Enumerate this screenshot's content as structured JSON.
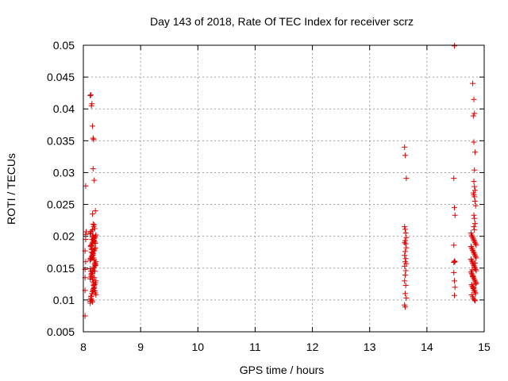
{
  "chart_data": {
    "type": "scatter",
    "title": "Day 143 of 2018, Rate Of TEC Index for receiver scrz",
    "xlabel": "GPS time / hours",
    "ylabel": "ROTI / TECUs",
    "xlim": [
      8,
      15
    ],
    "ylim": [
      0.005,
      0.05
    ],
    "xticks": [
      "8",
      "9",
      "10",
      "11",
      "12",
      "13",
      "14",
      "15"
    ],
    "yticks": [
      "0.005",
      "0.01",
      "0.015",
      "0.02",
      "0.025",
      "0.03",
      "0.035",
      "0.04",
      "0.045",
      "0.05"
    ],
    "grid": true,
    "marker": "plus",
    "color": "#e00000",
    "series": [
      {
        "x": [
          8.03,
          8.03,
          8.03,
          8.04,
          8.03,
          8.04,
          8.04,
          8.05,
          8.04,
          8.03,
          8.12,
          8.13,
          8.14,
          8.15,
          8.16,
          8.17,
          8.18,
          8.17,
          8.19,
          8.21,
          8.16,
          8.17,
          8.12,
          8.12,
          8.13,
          8.14,
          8.15,
          8.16,
          8.17,
          8.18,
          8.19,
          8.2,
          8.21,
          8.22,
          8.12,
          8.13,
          8.14,
          8.15,
          8.16,
          8.17,
          8.18,
          8.19,
          8.2,
          8.21,
          8.22,
          8.12,
          8.13,
          8.14,
          8.15,
          8.16,
          8.17,
          8.18,
          8.19,
          8.2,
          8.21,
          8.13,
          8.14,
          8.15,
          8.16,
          8.17,
          8.18,
          8.19,
          8.2,
          8.21,
          8.22,
          8.12,
          8.13,
          8.14,
          8.15,
          8.16,
          8.17,
          8.18,
          8.19,
          8.2,
          8.21,
          8.13,
          8.14,
          8.15,
          8.16,
          8.17,
          8.18,
          8.19,
          8.2,
          8.21,
          8.12,
          8.13,
          8.14,
          8.15,
          8.16,
          8.17,
          8.18,
          8.19,
          8.2,
          8.21,
          8.22,
          8.13,
          8.14,
          8.15,
          8.16,
          8.17,
          8.18,
          8.19,
          8.2,
          8.21,
          8.12,
          8.14,
          8.15,
          8.16,
          8.18,
          8.19,
          8.2,
          13.61,
          13.62,
          13.64,
          13.61,
          13.62,
          13.63,
          13.64,
          13.62,
          13.61,
          13.63,
          13.64,
          13.62,
          13.61,
          13.63,
          13.62,
          13.64,
          13.61,
          13.63,
          13.62,
          13.61,
          13.63,
          13.62,
          13.64,
          13.61,
          13.62,
          14.48,
          14.47,
          14.48,
          14.49,
          14.47,
          14.48,
          14.49,
          14.47,
          14.48,
          14.49,
          14.48,
          14.47,
          14.8,
          14.82,
          14.83,
          14.81,
          14.82,
          14.84,
          14.83,
          14.82,
          14.83,
          14.84,
          14.81,
          14.82,
          14.83,
          14.84,
          14.85,
          14.82,
          14.83,
          14.84,
          14.82,
          14.83,
          14.77,
          14.78,
          14.79,
          14.8,
          14.81,
          14.82,
          14.83,
          14.84,
          14.85,
          14.86,
          14.77,
          14.78,
          14.79,
          14.8,
          14.81,
          14.82,
          14.83,
          14.84,
          14.85,
          14.86,
          14.77,
          14.78,
          14.79,
          14.8,
          14.81,
          14.82,
          14.83,
          14.84,
          14.85,
          14.86,
          14.77,
          14.78,
          14.79,
          14.8,
          14.81,
          14.82,
          14.83,
          14.84,
          14.85,
          14.86,
          14.78,
          14.79,
          14.8,
          14.81,
          14.82,
          14.83,
          14.84,
          14.85,
          14.78,
          14.8,
          14.81,
          14.83,
          14.84,
          14.82,
          14.85,
          14.8,
          14.79,
          14.84
        ],
        "y": [
          0.0075,
          0.0115,
          0.0148,
          0.016,
          0.0177,
          0.0195,
          0.0203,
          0.0207,
          0.0279,
          0.0135,
          0.0421,
          0.0422,
          0.0405,
          0.0408,
          0.0373,
          0.0354,
          0.0352,
          0.0306,
          0.0288,
          0.024,
          0.0235,
          0.0219,
          0.0095,
          0.0098,
          0.0102,
          0.0106,
          0.011,
          0.0113,
          0.0116,
          0.0118,
          0.0121,
          0.0124,
          0.0127,
          0.013,
          0.0133,
          0.0136,
          0.0139,
          0.0142,
          0.0144,
          0.0147,
          0.015,
          0.0152,
          0.0155,
          0.0157,
          0.016,
          0.0162,
          0.0164,
          0.0167,
          0.0169,
          0.0171,
          0.0173,
          0.0176,
          0.0178,
          0.018,
          0.0182,
          0.0184,
          0.0186,
          0.0188,
          0.019,
          0.0192,
          0.0194,
          0.0196,
          0.0198,
          0.02,
          0.0202,
          0.0204,
          0.0206,
          0.0208,
          0.0195,
          0.0199,
          0.0201,
          0.0197,
          0.0193,
          0.0191,
          0.0189,
          0.0185,
          0.0181,
          0.0179,
          0.0174,
          0.017,
          0.0166,
          0.0163,
          0.0158,
          0.0154,
          0.0149,
          0.0145,
          0.0141,
          0.0137,
          0.0132,
          0.0128,
          0.0123,
          0.0119,
          0.0114,
          0.0111,
          0.0108,
          0.0105,
          0.0101,
          0.0099,
          0.0097,
          0.0115,
          0.0125,
          0.0135,
          0.0145,
          0.0155,
          0.0165,
          0.0175,
          0.0185,
          0.021,
          0.0215,
          0.0218,
          0.0212,
          0.034,
          0.0327,
          0.0291,
          0.0215,
          0.0211,
          0.0205,
          0.0198,
          0.0193,
          0.019,
          0.0188,
          0.0182,
          0.0176,
          0.017,
          0.0165,
          0.016,
          0.0157,
          0.0153,
          0.0146,
          0.0139,
          0.013,
          0.0123,
          0.011,
          0.0103,
          0.0092,
          0.0089,
          0.0499,
          0.0291,
          0.0245,
          0.0233,
          0.0186,
          0.0161,
          0.016,
          0.0143,
          0.013,
          0.012,
          0.0107,
          0.0159,
          0.044,
          0.0415,
          0.0393,
          0.0389,
          0.0348,
          0.0332,
          0.0304,
          0.0286,
          0.0278,
          0.0272,
          0.0268,
          0.0265,
          0.0262,
          0.0255,
          0.0248,
          0.0233,
          0.0228,
          0.022,
          0.0215,
          0.021,
          0.0205,
          0.0202,
          0.02,
          0.0198,
          0.0196,
          0.0194,
          0.0192,
          0.019,
          0.0188,
          0.0186,
          0.0184,
          0.0182,
          0.018,
          0.0178,
          0.0176,
          0.0174,
          0.0172,
          0.017,
          0.0168,
          0.0166,
          0.0164,
          0.0162,
          0.016,
          0.0158,
          0.0156,
          0.0154,
          0.0152,
          0.015,
          0.0148,
          0.0146,
          0.0144,
          0.0142,
          0.014,
          0.0138,
          0.0136,
          0.0134,
          0.0132,
          0.013,
          0.0128,
          0.0126,
          0.0124,
          0.0122,
          0.012,
          0.0118,
          0.0116,
          0.0114,
          0.0112,
          0.011,
          0.0108,
          0.0105,
          0.0102,
          0.01,
          0.0099,
          0.0119,
          0.0125,
          0.0137,
          0.0147,
          0.0158
        ]
      }
    ]
  }
}
